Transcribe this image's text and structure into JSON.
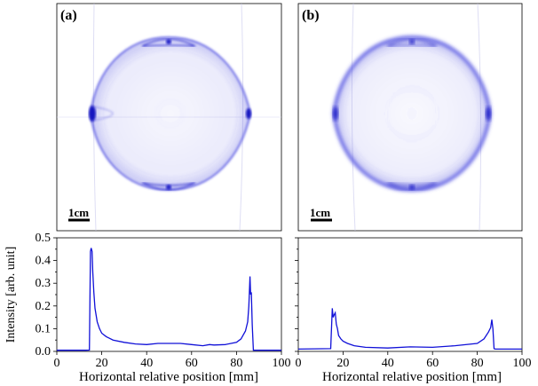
{
  "panels": [
    {
      "label": "(a)",
      "scalebar": "1cm"
    },
    {
      "label": "(b)",
      "scalebar": "1cm"
    }
  ],
  "colors": {
    "trace": "#1010d8",
    "image_tint": "#3a3ad8",
    "axis": "#000000"
  },
  "chart_data": [
    {
      "type": "line",
      "panel": "(a)",
      "xlabel": "Horizontal relative position [mm]",
      "ylabel": "Intensity [arb. unit]",
      "xlim": [
        0,
        100
      ],
      "ylim": [
        0,
        0.5
      ],
      "xticks": [
        0,
        20,
        40,
        60,
        80,
        100
      ],
      "yticks": [
        0.0,
        0.1,
        0.2,
        0.3,
        0.4,
        0.5
      ],
      "ytick_labels": [
        "0.0",
        "0.1",
        "0.2",
        "0.3",
        "0.4",
        "0.5"
      ],
      "x": [
        0,
        13,
        14.5,
        15,
        15.3,
        15.7,
        16,
        16.5,
        17,
        18,
        19,
        20,
        22,
        25,
        30,
        35,
        40,
        45,
        50,
        55,
        60,
        65,
        68,
        70,
        75,
        80,
        82,
        84,
        85,
        85.5,
        86,
        86.3,
        86.6,
        87,
        87.5,
        88,
        90,
        100
      ],
      "y": [
        0.005,
        0.005,
        0.006,
        0.44,
        0.455,
        0.44,
        0.35,
        0.26,
        0.19,
        0.13,
        0.1,
        0.08,
        0.065,
        0.05,
        0.04,
        0.033,
        0.03,
        0.035,
        0.035,
        0.035,
        0.03,
        0.025,
        0.03,
        0.028,
        0.03,
        0.04,
        0.055,
        0.09,
        0.13,
        0.2,
        0.33,
        0.25,
        0.26,
        0.12,
        0.005,
        0.005,
        0.005,
        0.005
      ]
    },
    {
      "type": "line",
      "panel": "(b)",
      "xlabel": "Horizontal relative position [mm]",
      "xlim": [
        0,
        100
      ],
      "ylim": [
        0,
        0.5
      ],
      "xticks": [
        0,
        20,
        40,
        60,
        80,
        100
      ],
      "x": [
        0,
        14.5,
        15.2,
        15.6,
        16,
        16.5,
        17,
        17.5,
        18,
        19,
        20,
        22,
        25,
        30,
        40,
        50,
        60,
        70,
        80,
        83,
        85,
        86,
        86.5,
        87,
        87.5,
        88,
        90,
        100
      ],
      "y": [
        0.01,
        0.012,
        0.19,
        0.15,
        0.16,
        0.17,
        0.12,
        0.1,
        0.07,
        0.055,
        0.045,
        0.035,
        0.025,
        0.018,
        0.015,
        0.02,
        0.018,
        0.025,
        0.035,
        0.055,
        0.085,
        0.105,
        0.14,
        0.1,
        0.012,
        0.01,
        0.01,
        0.01
      ]
    }
  ]
}
